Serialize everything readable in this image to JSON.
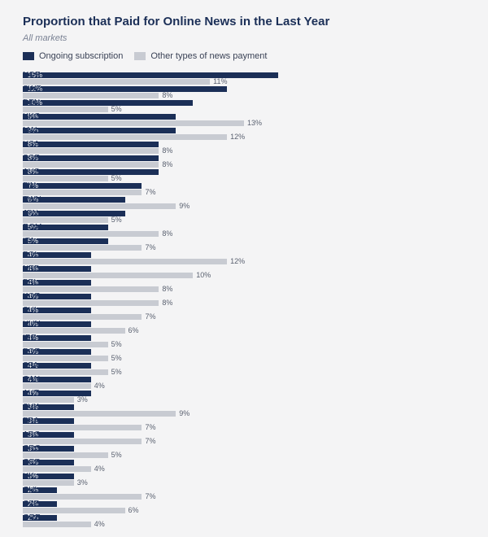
{
  "chart": {
    "type": "grouped-horizontal-bar",
    "title": "Proportion that Paid for Online News in the Last Year",
    "subtitle": "All markets",
    "background_color": "#f4f4f5",
    "title_color": "#1b2f57",
    "title_fontsize": 15,
    "subtitle_color": "#7a8294",
    "subtitle_fontsize": 11,
    "label_fontsize": 10,
    "value_fontsize": 9,
    "x_max_percent": 26,
    "series": [
      {
        "key": "subscription",
        "label": "Ongoing subscription",
        "color": "#1b2f57",
        "value_label_color": "#ffffff"
      },
      {
        "key": "other",
        "label": "Other types of news payment",
        "color": "#c8cbd2",
        "value_label_color": "#5a6170"
      }
    ],
    "rows": [
      {
        "country": "NOR",
        "subscription": 15,
        "other": 11
      },
      {
        "country": "SWE",
        "subscription": 12,
        "other": 8
      },
      {
        "country": "DEN",
        "subscription": 10,
        "other": 5
      },
      {
        "country": "HKG",
        "subscription": 9,
        "other": 13
      },
      {
        "country": "MAL",
        "subscription": 9,
        "other": 12
      },
      {
        "country": "USA",
        "subscription": 8,
        "other": 8
      },
      {
        "country": "SGP",
        "subscription": 8,
        "other": 8
      },
      {
        "country": "AUS",
        "subscription": 8,
        "other": 5
      },
      {
        "country": "FIN",
        "subscription": 7,
        "other": 7
      },
      {
        "country": "TWN",
        "subscription": 6,
        "other": 9
      },
      {
        "country": "JPN",
        "subscription": 6,
        "other": 5
      },
      {
        "country": "ROM",
        "subscription": 5,
        "other": 8
      },
      {
        "country": "ITA",
        "subscription": 5,
        "other": 7
      },
      {
        "country": "POL",
        "subscription": 4,
        "other": 12
      },
      {
        "country": "NED",
        "subscription": 4,
        "other": 10
      },
      {
        "country": "BEL",
        "subscription": 4,
        "other": 8
      },
      {
        "country": "KOR",
        "subscription": 4,
        "other": 8
      },
      {
        "country": "SUI",
        "subscription": 4,
        "other": 7
      },
      {
        "country": "HUN",
        "subscription": 4,
        "other": 6
      },
      {
        "country": "IRE",
        "subscription": 4,
        "other": 5
      },
      {
        "country": "POR",
        "subscription": 4,
        "other": 5
      },
      {
        "country": "SPA",
        "subscription": 4,
        "other": 5
      },
      {
        "country": "CAN",
        "subscription": 4,
        "other": 4
      },
      {
        "country": "AUT",
        "subscription": 4,
        "other": 3
      },
      {
        "country": "SVK",
        "subscription": 3,
        "other": 9
      },
      {
        "country": "FRA",
        "subscription": 3,
        "other": 7
      },
      {
        "country": "ARG",
        "subscription": 3,
        "other": 7
      },
      {
        "country": "CRO",
        "subscription": 3,
        "other": 5
      },
      {
        "country": "GER",
        "subscription": 3,
        "other": 4
      },
      {
        "country": "UK",
        "subscription": 3,
        "other": 3
      },
      {
        "country": "CHL",
        "subscription": 2,
        "other": 7
      },
      {
        "country": "CZE",
        "subscription": 2,
        "other": 6
      },
      {
        "country": "GRE",
        "subscription": 2,
        "other": 4
      }
    ]
  }
}
